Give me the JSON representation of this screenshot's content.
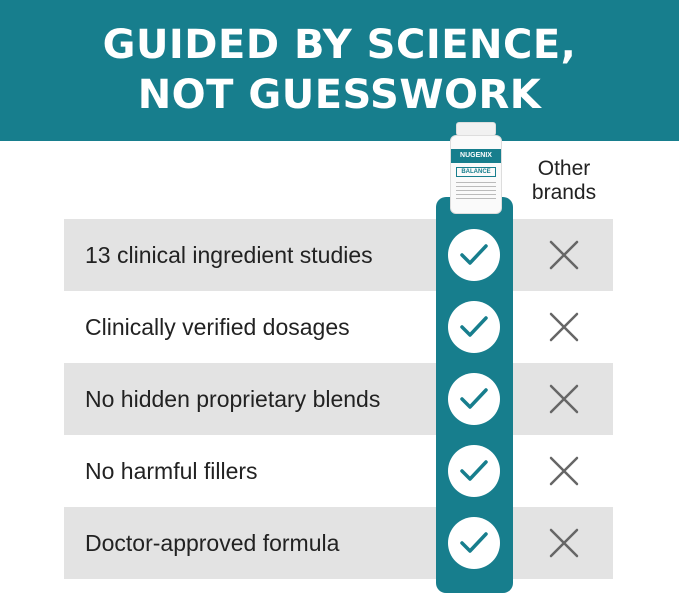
{
  "banner": {
    "line1": "GUIDED BY SCIENCE,",
    "line2": "NOT GUESSWORK"
  },
  "product": {
    "brand": "NUGENIX",
    "name": "BALANCE"
  },
  "columns": {
    "other": "Other brands"
  },
  "rows": [
    {
      "label": "13 clinical ingredient studies",
      "product": "check-icon",
      "other": "x-icon"
    },
    {
      "label": "Clinically verified dosages",
      "product": "check-icon",
      "other": "x-icon"
    },
    {
      "label": "No hidden proprietary blends",
      "product": "check-icon",
      "other": "x-icon"
    },
    {
      "label": "No harmful fillers",
      "product": "check-icon",
      "other": "x-icon"
    },
    {
      "label": "Doctor-approved formula",
      "product": "check-icon",
      "other": "x-icon"
    }
  ],
  "colors": {
    "teal": "#177e8d",
    "row_gray": "#e3e3e3",
    "x_gray": "#666666"
  }
}
